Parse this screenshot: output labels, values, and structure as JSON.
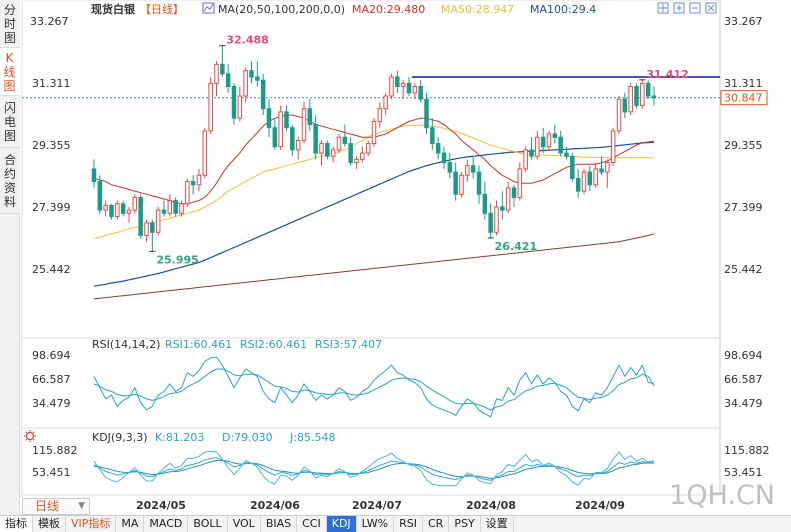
{
  "sidebar": {
    "tabs": [
      {
        "label": "分时图",
        "active": false
      },
      {
        "label": "K线图",
        "active": true
      },
      {
        "label": "闪电图",
        "active": false
      },
      {
        "label": "合约资料",
        "active": false
      }
    ]
  },
  "header": {
    "name": "现货白银",
    "period": "【日线】",
    "ma_label": "MA(20,50,100,200,0,0)",
    "ma20": "MA20:29.480",
    "ma50": "MA50:28.947",
    "ma100": "MA100:29.4"
  },
  "price_panel": {
    "price_ticks": [
      "33.267",
      "31.311",
      "29.355",
      "27.399",
      "25.442"
    ],
    "current_price": "30.847",
    "annotations": {
      "high1": "32.488",
      "high2": "31.412",
      "low1": "25.995",
      "low2": "26.421"
    }
  },
  "rsi_panel": {
    "title": "RSI(14,14,2)",
    "rsi1": "RSI1:60.461",
    "rsi2": "RSI2:60.461",
    "rsi3": "RSI3:57.407",
    "ticks": [
      "98.694",
      "66.587",
      "34.479"
    ]
  },
  "kdj_panel": {
    "title": "KDJ(9,3,3)",
    "k": "K:81.203",
    "d": "D:79.030",
    "j": "J:85.548",
    "ticks": [
      "115.882",
      "53.451"
    ]
  },
  "x_axis": {
    "period_select": "日线",
    "labels": [
      "2024/05",
      "2024/06",
      "2024/07",
      "2024/08",
      "2024/09"
    ]
  },
  "bottom_tabs": [
    {
      "label": "指标",
      "style": "first"
    },
    {
      "label": "模板",
      "style": ""
    },
    {
      "label": "VIP指标",
      "style": "hl"
    },
    {
      "label": "MA",
      "style": ""
    },
    {
      "label": "MACD",
      "style": ""
    },
    {
      "label": "BOLL",
      "style": ""
    },
    {
      "label": "VOL",
      "style": ""
    },
    {
      "label": "BIAS",
      "style": ""
    },
    {
      "label": "CCI",
      "style": ""
    },
    {
      "label": "KDJ",
      "style": "active"
    },
    {
      "label": "LW%",
      "style": ""
    },
    {
      "label": "RSI",
      "style": ""
    },
    {
      "label": "CR",
      "style": ""
    },
    {
      "label": "PSY",
      "style": ""
    },
    {
      "label": "设置",
      "style": ""
    }
  ],
  "watermark": "1QH.CN",
  "colors": {
    "up": "#e64b4b",
    "down": "#1a9b8a",
    "ma20": "#d0312d",
    "ma50": "#e8c23a",
    "ma100": "#1f4e9c",
    "ma200": "#8b3a2b",
    "rsi": "#2aa2c9",
    "resistance": "#1414a0"
  },
  "chart_data": {
    "type": "candlestick",
    "title": "现货白银【日线】",
    "y_range": [
      24.5,
      33.8
    ],
    "ohlc": [
      [
        28.6,
        28.9,
        28.0,
        28.2
      ],
      [
        28.2,
        28.4,
        27.2,
        27.3
      ],
      [
        27.3,
        27.6,
        27.1,
        27.45
      ],
      [
        27.45,
        27.5,
        27.0,
        27.1
      ],
      [
        27.1,
        27.6,
        27.0,
        27.5
      ],
      [
        27.5,
        27.6,
        27.1,
        27.2
      ],
      [
        27.2,
        27.4,
        26.9,
        27.3
      ],
      [
        27.3,
        27.8,
        27.2,
        27.7
      ],
      [
        27.7,
        27.8,
        26.4,
        26.5
      ],
      [
        26.5,
        27.0,
        26.3,
        26.9
      ],
      [
        26.9,
        27.0,
        26.0,
        26.6
      ],
      [
        26.6,
        27.4,
        26.5,
        27.3
      ],
      [
        27.3,
        27.6,
        27.1,
        27.2
      ],
      [
        27.2,
        27.8,
        27.1,
        27.6
      ],
      [
        27.6,
        27.7,
        27.1,
        27.2
      ],
      [
        27.2,
        27.6,
        27.1,
        27.5
      ],
      [
        27.5,
        28.3,
        27.4,
        28.2
      ],
      [
        28.2,
        28.4,
        27.8,
        28.1
      ],
      [
        28.1,
        28.6,
        27.9,
        28.4
      ],
      [
        28.4,
        29.9,
        28.3,
        29.8
      ],
      [
        29.8,
        31.5,
        29.7,
        31.3
      ],
      [
        31.3,
        32.0,
        30.9,
        31.9
      ],
      [
        31.9,
        32.488,
        31.5,
        31.6
      ],
      [
        31.6,
        31.9,
        31.0,
        31.2
      ],
      [
        31.2,
        31.3,
        30.0,
        30.2
      ],
      [
        30.2,
        31.2,
        30.1,
        30.9
      ],
      [
        30.9,
        31.8,
        30.7,
        31.7
      ],
      [
        31.7,
        32.0,
        31.3,
        31.5
      ],
      [
        31.5,
        32.0,
        31.2,
        31.4
      ],
      [
        31.4,
        31.6,
        30.3,
        30.5
      ],
      [
        30.5,
        30.8,
        29.6,
        29.9
      ],
      [
        29.9,
        30.2,
        29.2,
        29.3
      ],
      [
        29.3,
        30.6,
        29.2,
        30.4
      ],
      [
        30.4,
        30.6,
        29.8,
        29.9
      ],
      [
        29.9,
        30.0,
        29.0,
        29.2
      ],
      [
        29.2,
        29.6,
        28.9,
        29.5
      ],
      [
        29.5,
        30.7,
        29.4,
        30.5
      ],
      [
        30.5,
        30.8,
        29.8,
        30.0
      ],
      [
        30.0,
        30.3,
        28.9,
        29.1
      ],
      [
        29.1,
        29.5,
        28.7,
        29.4
      ],
      [
        29.4,
        29.5,
        28.9,
        29.0
      ],
      [
        29.0,
        29.3,
        28.8,
        29.2
      ],
      [
        29.2,
        29.7,
        29.1,
        29.6
      ],
      [
        29.6,
        30.0,
        29.3,
        29.4
      ],
      [
        29.4,
        29.6,
        28.7,
        28.8
      ],
      [
        28.8,
        29.0,
        28.6,
        28.9
      ],
      [
        28.9,
        29.3,
        28.8,
        29.1
      ],
      [
        29.1,
        29.5,
        29.0,
        29.4
      ],
      [
        29.4,
        30.2,
        29.3,
        30.1
      ],
      [
        30.1,
        30.7,
        29.9,
        30.5
      ],
      [
        30.5,
        31.0,
        30.3,
        30.9
      ],
      [
        30.9,
        31.6,
        30.8,
        31.5
      ],
      [
        31.5,
        31.7,
        31.0,
        31.2
      ],
      [
        31.2,
        31.4,
        30.8,
        31.3
      ],
      [
        31.3,
        31.5,
        30.9,
        31.0
      ],
      [
        31.0,
        31.3,
        30.8,
        31.2
      ],
      [
        31.2,
        31.4,
        30.7,
        30.8
      ],
      [
        30.8,
        31.0,
        29.7,
        29.9
      ],
      [
        29.9,
        30.2,
        29.2,
        29.4
      ],
      [
        29.4,
        29.6,
        28.9,
        29.1
      ],
      [
        29.1,
        29.3,
        28.6,
        28.8
      ],
      [
        28.8,
        29.1,
        28.3,
        28.5
      ],
      [
        28.5,
        28.8,
        27.6,
        27.8
      ],
      [
        27.8,
        28.5,
        27.7,
        28.4
      ],
      [
        28.4,
        28.9,
        28.2,
        28.7
      ],
      [
        28.7,
        29.0,
        28.3,
        28.5
      ],
      [
        28.5,
        28.7,
        27.5,
        27.8
      ],
      [
        27.8,
        28.2,
        27.0,
        27.2
      ],
      [
        27.2,
        27.5,
        26.421,
        26.6
      ],
      [
        26.6,
        27.6,
        26.5,
        27.4
      ],
      [
        27.4,
        27.9,
        27.0,
        27.3
      ],
      [
        27.3,
        28.2,
        27.2,
        28.0
      ],
      [
        28.0,
        28.1,
        27.4,
        27.7
      ],
      [
        27.7,
        28.8,
        27.6,
        28.6
      ],
      [
        28.6,
        29.3,
        28.5,
        29.2
      ],
      [
        29.2,
        29.6,
        28.9,
        29.0
      ],
      [
        29.0,
        29.8,
        28.9,
        29.6
      ],
      [
        29.6,
        29.9,
        29.1,
        29.3
      ],
      [
        29.3,
        29.8,
        29.2,
        29.7
      ],
      [
        29.7,
        30.0,
        29.4,
        29.6
      ],
      [
        29.6,
        29.8,
        29.0,
        29.1
      ],
      [
        29.1,
        29.3,
        28.9,
        29.0
      ],
      [
        29.0,
        29.1,
        28.2,
        28.3
      ],
      [
        28.3,
        28.6,
        27.7,
        27.9
      ],
      [
        27.9,
        28.6,
        27.8,
        28.5
      ],
      [
        28.5,
        28.7,
        27.9,
        28.1
      ],
      [
        28.1,
        28.8,
        28.0,
        28.6
      ],
      [
        28.6,
        29.0,
        28.4,
        28.5
      ],
      [
        28.5,
        28.9,
        28.0,
        28.8
      ],
      [
        28.8,
        29.9,
        28.7,
        29.8
      ],
      [
        29.8,
        30.9,
        29.7,
        30.8
      ],
      [
        30.8,
        31.0,
        30.2,
        30.4
      ],
      [
        30.4,
        31.3,
        30.3,
        31.2
      ],
      [
        31.2,
        31.3,
        30.5,
        30.6
      ],
      [
        30.6,
        31.412,
        30.5,
        31.3
      ],
      [
        31.3,
        31.4,
        30.8,
        30.9
      ],
      [
        30.9,
        31.2,
        30.6,
        30.847
      ]
    ],
    "ma20": [
      28.3,
      28.25,
      28.2,
      28.1,
      28.05,
      28.0,
      27.95,
      27.9,
      27.85,
      27.8,
      27.75,
      27.7,
      27.65,
      27.6,
      27.55,
      27.5,
      27.5,
      27.55,
      27.6,
      27.7,
      27.9,
      28.15,
      28.45,
      28.7,
      28.9,
      29.1,
      29.35,
      29.55,
      29.75,
      29.95,
      30.1,
      30.2,
      30.25,
      30.3,
      30.3,
      30.25,
      30.2,
      30.1,
      30.0,
      29.95,
      29.9,
      29.85,
      29.8,
      29.75,
      29.7,
      29.65,
      29.6,
      29.6,
      29.6,
      29.65,
      29.7,
      29.8,
      29.9,
      30.0,
      30.1,
      30.15,
      30.2,
      30.2,
      30.15,
      30.1,
      30.0,
      29.85,
      29.7,
      29.5,
      29.35,
      29.2,
      29.05,
      28.9,
      28.7,
      28.55,
      28.4,
      28.3,
      28.2,
      28.15,
      28.15,
      28.15,
      28.2,
      28.25,
      28.35,
      28.45,
      28.55,
      28.65,
      28.7,
      28.75,
      28.75,
      28.75,
      28.75,
      28.8,
      28.85,
      28.95,
      29.05,
      29.15,
      29.25,
      29.35,
      29.42,
      29.45,
      29.48
    ],
    "ma50": [
      26.4,
      26.45,
      26.5,
      26.55,
      26.6,
      26.65,
      26.7,
      26.75,
      26.8,
      26.85,
      26.9,
      26.95,
      27.0,
      27.05,
      27.1,
      27.15,
      27.2,
      27.25,
      27.3,
      27.4,
      27.5,
      27.6,
      27.75,
      27.9,
      28.0,
      28.1,
      28.2,
      28.3,
      28.4,
      28.5,
      28.55,
      28.6,
      28.65,
      28.7,
      28.75,
      28.8,
      28.85,
      28.9,
      28.95,
      29.0,
      29.05,
      29.1,
      29.15,
      29.2,
      29.3,
      29.4,
      29.5,
      29.6,
      29.7,
      29.75,
      29.8,
      29.85,
      29.9,
      29.95,
      29.97,
      29.98,
      29.98,
      29.97,
      29.95,
      29.92,
      29.88,
      29.83,
      29.78,
      29.72,
      29.65,
      29.58,
      29.5,
      29.42,
      29.35,
      29.3,
      29.25,
      29.2,
      29.15,
      29.1,
      29.08,
      29.06,
      29.05,
      29.04,
      29.03,
      29.02,
      29.01,
      29.0,
      28.99,
      28.98,
      28.97,
      28.97,
      28.96,
      28.96,
      28.95,
      28.95,
      28.95,
      28.95,
      28.95,
      28.95,
      28.95,
      28.95,
      28.947
    ],
    "ma100": [
      24.9,
      24.93,
      24.96,
      25.0,
      25.03,
      25.06,
      25.1,
      25.14,
      25.18,
      25.22,
      25.26,
      25.3,
      25.35,
      25.4,
      25.45,
      25.5,
      25.55,
      25.6,
      25.65,
      25.72,
      25.8,
      25.88,
      25.96,
      26.04,
      26.12,
      26.2,
      26.28,
      26.36,
      26.44,
      26.52,
      26.6,
      26.68,
      26.76,
      26.84,
      26.92,
      27.0,
      27.08,
      27.16,
      27.24,
      27.32,
      27.4,
      27.48,
      27.56,
      27.64,
      27.72,
      27.8,
      27.88,
      27.96,
      28.04,
      28.12,
      28.2,
      28.28,
      28.36,
      28.44,
      28.52,
      28.58,
      28.64,
      28.7,
      28.75,
      28.8,
      28.84,
      28.88,
      28.92,
      28.95,
      28.98,
      29.0,
      29.02,
      29.04,
      29.06,
      29.08,
      29.1,
      29.12,
      29.13,
      29.14,
      29.15,
      29.16,
      29.17,
      29.18,
      29.19,
      29.2,
      29.21,
      29.22,
      29.23,
      29.24,
      29.25,
      29.26,
      29.27,
      29.28,
      29.3,
      29.32,
      29.34,
      29.36,
      29.38,
      29.4,
      29.42,
      29.43,
      29.44
    ],
    "ma200": [
      24.5,
      24.52,
      24.54,
      24.56,
      24.58,
      24.6,
      24.62,
      24.64,
      24.66,
      24.68,
      24.7,
      24.72,
      24.74,
      24.76,
      24.78,
      24.8,
      24.82,
      24.84,
      24.86,
      24.88,
      24.9,
      24.92,
      24.94,
      24.96,
      24.98,
      25.0,
      25.02,
      25.04,
      25.06,
      25.08,
      25.1,
      25.12,
      25.14,
      25.16,
      25.18,
      25.2,
      25.22,
      25.24,
      25.26,
      25.28,
      25.3,
      25.32,
      25.34,
      25.36,
      25.38,
      25.4,
      25.42,
      25.44,
      25.46,
      25.48,
      25.5,
      25.52,
      25.54,
      25.56,
      25.58,
      25.6,
      25.62,
      25.64,
      25.66,
      25.68,
      25.7,
      25.72,
      25.74,
      25.76,
      25.78,
      25.8,
      25.82,
      25.84,
      25.86,
      25.88,
      25.9,
      25.92,
      25.94,
      25.96,
      25.98,
      26.0,
      26.02,
      26.04,
      26.06,
      26.08,
      26.1,
      26.12,
      26.14,
      26.16,
      26.18,
      26.2,
      26.22,
      26.24,
      26.26,
      26.28,
      26.3,
      26.34,
      26.38,
      26.42,
      26.46,
      26.5,
      26.55
    ],
    "resistance_level": 31.5,
    "current_price": 30.847,
    "rsi_range": [
      15,
      105
    ],
    "rsi1": [
      70,
      55,
      40,
      45,
      30,
      38,
      42,
      55,
      35,
      25,
      30,
      45,
      50,
      60,
      50,
      55,
      75,
      70,
      78,
      90,
      95,
      96,
      85,
      70,
      55,
      68,
      80,
      75,
      70,
      50,
      40,
      35,
      55,
      45,
      35,
      45,
      60,
      50,
      38,
      45,
      40,
      45,
      55,
      50,
      38,
      42,
      50,
      55,
      65,
      72,
      78,
      85,
      75,
      72,
      65,
      62,
      55,
      40,
      32,
      28,
      25,
      22,
      18,
      30,
      40,
      35,
      25,
      20,
      16,
      40,
      38,
      55,
      45,
      65,
      75,
      60,
      72,
      60,
      68,
      62,
      50,
      45,
      30,
      24,
      40,
      35,
      48,
      45,
      55,
      70,
      85,
      70,
      82,
      72,
      85,
      62,
      60.461
    ],
    "rsi3": [
      60,
      57,
      52,
      50,
      46,
      44,
      44,
      46,
      44,
      40,
      38,
      40,
      43,
      47,
      48,
      50,
      56,
      60,
      64,
      70,
      76,
      80,
      80,
      77,
      72,
      71,
      73,
      73,
      72,
      67,
      62,
      57,
      56,
      54,
      50,
      49,
      52,
      51,
      48,
      47,
      46,
      46,
      48,
      48,
      46,
      45,
      46,
      48,
      52,
      56,
      60,
      65,
      67,
      68,
      67,
      66,
      63,
      57,
      52,
      47,
      43,
      38,
      34,
      33,
      34,
      34,
      32,
      29,
      25,
      29,
      31,
      37,
      39,
      45,
      51,
      53,
      57,
      58,
      60,
      61,
      58,
      55,
      48,
      42,
      41,
      39,
      41,
      42,
      45,
      51,
      59,
      62,
      67,
      68,
      73,
      70,
      57.407
    ],
    "kdj_range": [
      25,
      130
    ],
    "kdj_k": [
      75,
      65,
      55,
      50,
      45,
      48,
      52,
      58,
      50,
      42,
      40,
      48,
      55,
      62,
      58,
      62,
      72,
      75,
      80,
      88,
      92,
      94,
      88,
      78,
      68,
      72,
      80,
      78,
      74,
      62,
      52,
      45,
      52,
      50,
      44,
      48,
      58,
      54,
      46,
      48,
      46,
      49,
      55,
      53,
      46,
      47,
      52,
      57,
      65,
      72,
      78,
      85,
      82,
      80,
      76,
      74,
      68,
      56,
      47,
      42,
      38,
      35,
      32,
      38,
      45,
      43,
      37,
      33,
      30,
      40,
      45,
      55,
      55,
      65,
      75,
      70,
      75,
      70,
      73,
      70,
      62,
      57,
      47,
      40,
      45,
      43,
      50,
      50,
      55,
      68,
      80,
      75,
      82,
      78,
      83,
      80,
      81.203
    ],
    "kdj_d": [
      70,
      68,
      64,
      60,
      55,
      53,
      52,
      54,
      53,
      49,
      46,
      47,
      50,
      54,
      55,
      57,
      62,
      67,
      71,
      77,
      82,
      86,
      87,
      84,
      79,
      76,
      77,
      78,
      77,
      72,
      65,
      58,
      56,
      54,
      51,
      50,
      53,
      53,
      51,
      50,
      49,
      49,
      51,
      52,
      50,
      49,
      50,
      52,
      57,
      62,
      68,
      74,
      77,
      78,
      77,
      76,
      73,
      68,
      61,
      55,
      50,
      45,
      41,
      40,
      42,
      42,
      41,
      38,
      35,
      37,
      40,
      45,
      48,
      54,
      61,
      64,
      68,
      69,
      70,
      70,
      67,
      64,
      58,
      52,
      50,
      48,
      49,
      49,
      51,
      57,
      65,
      68,
      73,
      75,
      78,
      79,
      79.03
    ],
    "kdj_j": [
      85,
      60,
      38,
      30,
      25,
      38,
      52,
      66,
      44,
      28,
      28,
      50,
      65,
      78,
      64,
      72,
      92,
      92,
      98,
      110,
      112,
      110,
      90,
      66,
      46,
      64,
      86,
      78,
      68,
      42,
      26,
      19,
      44,
      42,
      30,
      44,
      68,
      56,
      36,
      44,
      40,
      49,
      63,
      55,
      38,
      43,
      56,
      67,
      81,
      92,
      98,
      107,
      92,
      84,
      74,
      70,
      58,
      32,
      19,
      16,
      14,
      15,
      14,
      34,
      51,
      45,
      29,
      23,
      20,
      46,
      55,
      75,
      69,
      87,
      103,
      82,
      89,
      72,
      79,
      70,
      52,
      43,
      25,
      16,
      35,
      33,
      52,
      52,
      63,
      90,
      110,
      89,
      100,
      84,
      93,
      82,
      85.548
    ]
  }
}
